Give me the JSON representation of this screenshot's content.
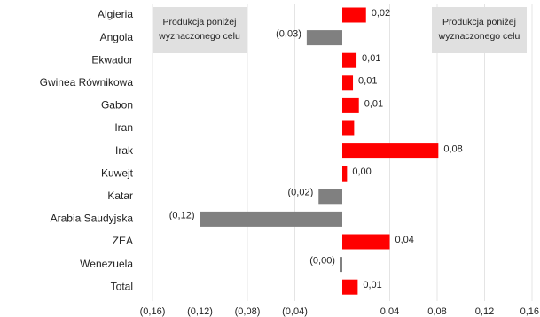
{
  "chart_data": {
    "type": "bar",
    "orientation": "horizontal",
    "categories": [
      "Algieria",
      "Angola",
      "Ekwador",
      "Gwinea Równikowa",
      "Gabon",
      "Iran",
      "Irak",
      "Kuwejt",
      "Katar",
      "Arabia Saudyjska",
      "ZEA",
      "Wenezuela",
      "Total"
    ],
    "values": [
      0.02,
      -0.03,
      0.012,
      0.009,
      0.014,
      0.01,
      0.081,
      0.004,
      -0.02,
      -0.12,
      0.04,
      -0.0015,
      0.013
    ],
    "value_labels": [
      "0,02",
      "(0,03)",
      "0,01",
      "0,01",
      "0,01",
      null,
      "0,08",
      "0,00",
      "(0,02)",
      "(0,12)",
      "0,04",
      "(0,00)",
      "0,01"
    ],
    "positive_color": "#ff0000",
    "negative_color": "#808080",
    "xlim": [
      -0.16,
      0.16
    ],
    "xticks": [
      {
        "value": -0.16,
        "label": "(0,16)"
      },
      {
        "value": -0.12,
        "label": "(0,12)"
      },
      {
        "value": -0.08,
        "label": "(0,08)"
      },
      {
        "value": -0.04,
        "label": "(0,04)"
      },
      {
        "value": 0.04,
        "label": "0,04"
      },
      {
        "value": 0.08,
        "label": "0,08"
      },
      {
        "value": 0.12,
        "label": "0,12"
      },
      {
        "value": 0.16,
        "label": "0,16"
      }
    ],
    "grid": true,
    "annotations": [
      {
        "lines": [
          "Produkcja poniżej",
          "wyznaczonego celu"
        ]
      },
      {
        "lines": [
          "Produkcja poniżej",
          "wyznaczonego celu"
        ]
      }
    ]
  }
}
